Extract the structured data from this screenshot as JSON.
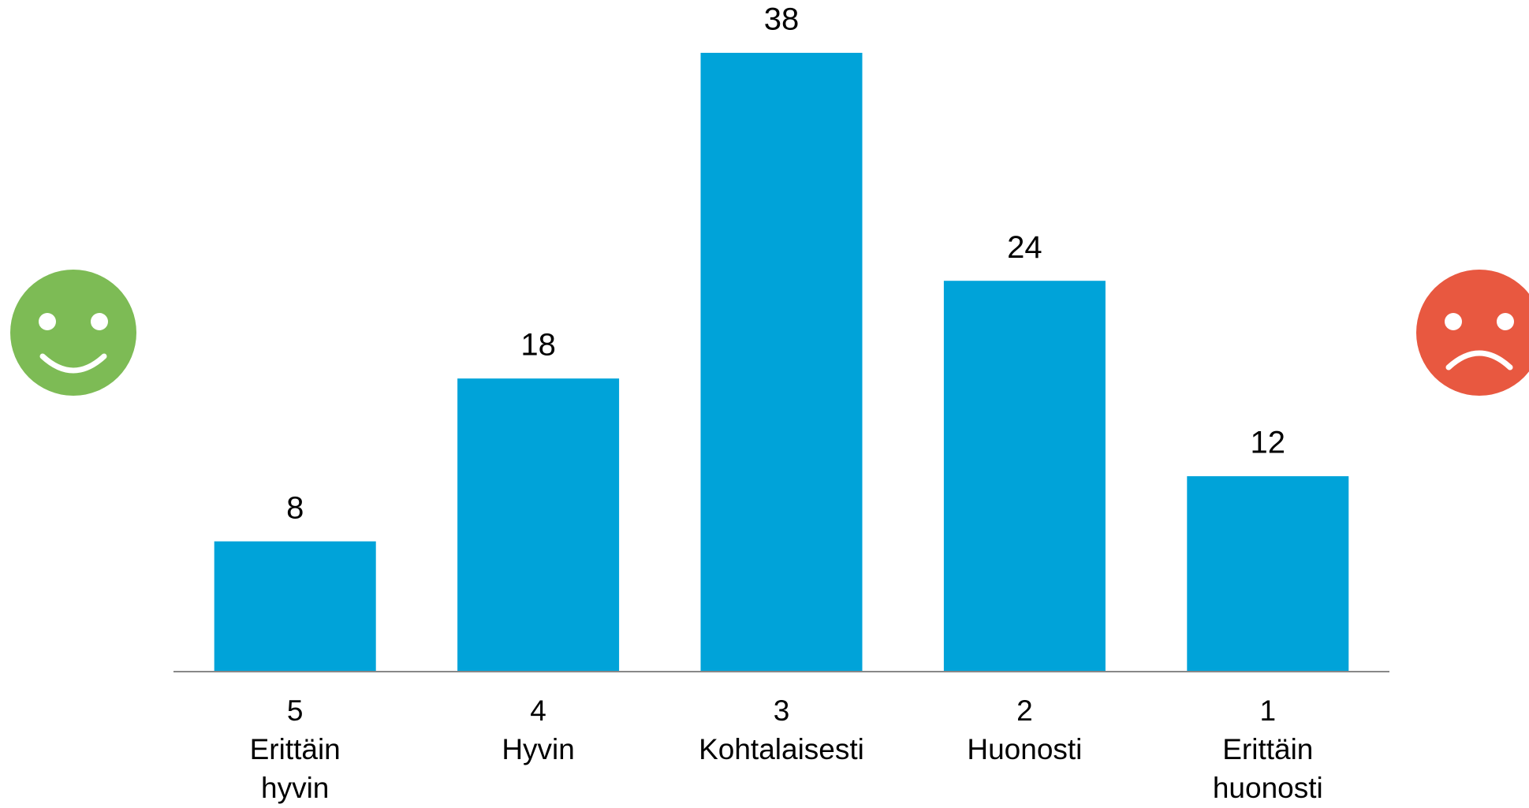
{
  "chart_data": {
    "type": "bar",
    "categories": [
      [
        "5",
        "Erittäin",
        "hyvin"
      ],
      [
        "4",
        "Hyvin"
      ],
      [
        "3",
        "Kohtalaisesti"
      ],
      [
        "2",
        "Huonosti"
      ],
      [
        "1",
        "Erittäin",
        "huonosti"
      ]
    ],
    "values": [
      8,
      18,
      38,
      24,
      12
    ],
    "color": "#00a3d9"
  }
}
